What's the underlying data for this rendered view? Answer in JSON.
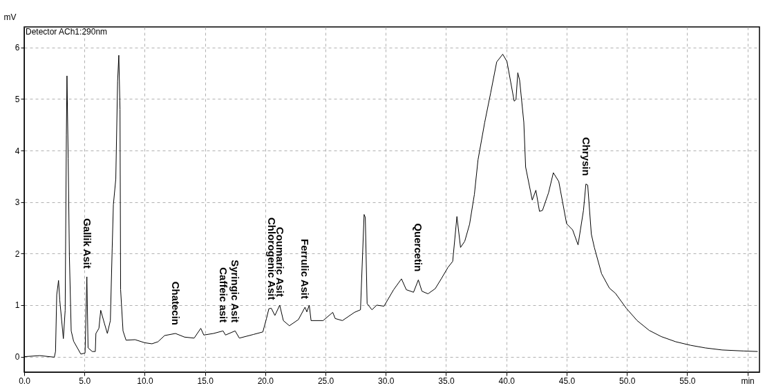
{
  "chart_data": {
    "type": "line",
    "ylabel": "mV",
    "annotations": [
      "Detector ACh1:290nm",
      {
        "text": "Gallik Asit",
        "x": 5.2,
        "y": 1.55
      },
      {
        "text": "Chatecin",
        "x": 12.55,
        "y": 0.45
      },
      {
        "text": "Caffeic asit",
        "x": 16.5,
        "y": 0.5
      },
      {
        "text": "Syringic Asit",
        "x": 17.5,
        "y": 0.5
      },
      {
        "text": "Chlorogenic Asit",
        "x": 20.5,
        "y": 0.94
      },
      {
        "text": "Coumaric Asit",
        "x": 21.2,
        "y": 1.0
      },
      {
        "text": "Ferrulic Asit",
        "x": 23.3,
        "y": 0.96
      },
      {
        "text": "Quercetin",
        "x": 32.7,
        "y": 1.49
      },
      {
        "text": "Chrysin",
        "x": 46.6,
        "y": 3.35
      }
    ],
    "x": [
      0,
      1.3,
      2.5,
      2.6,
      2.7,
      2.85,
      2.95,
      3.25,
      3.4,
      3.5,
      3.55,
      3.65,
      3.75,
      3.9,
      4.1,
      4.7,
      5.05,
      5.2,
      5.3,
      5.65,
      5.9,
      5.95,
      6.2,
      6.35,
      6.65,
      6.9,
      7.15,
      7.3,
      7.4,
      7.6,
      7.75,
      7.85,
      7.95,
      8.0,
      8.2,
      8.45,
      9.2,
      10.0,
      10.6,
      11.1,
      11.65,
      12.55,
      13.3,
      14.1,
      14.65,
      14.9,
      15.7,
      16.5,
      16.7,
      17.5,
      17.85,
      19.0,
      19.8,
      20.1,
      20.3,
      20.5,
      20.8,
      21.2,
      21.5,
      22.0,
      22.75,
      23.3,
      23.45,
      23.65,
      23.8,
      24.8,
      25.6,
      25.8,
      26.4,
      27.4,
      27.9,
      28.2,
      28.3,
      28.45,
      28.85,
      29.25,
      29.85,
      30.65,
      31.3,
      31.7,
      32.3,
      32.7,
      33.0,
      33.5,
      34.1,
      34.6,
      35.15,
      35.55,
      35.9,
      36.2,
      36.55,
      36.95,
      37.35,
      37.65,
      38.2,
      38.7,
      39.2,
      39.7,
      40.05,
      40.65,
      40.8,
      40.95,
      41.1,
      41.45,
      41.6,
      42.15,
      42.45,
      42.75,
      43.0,
      43.5,
      43.9,
      44.35,
      45.0,
      45.5,
      45.95,
      46.4,
      46.6,
      46.75,
      47.05,
      47.3,
      47.9,
      48.55,
      49.05,
      49.95,
      50.85,
      51.85,
      52.85,
      54.05,
      55.3,
      56.5,
      57.9,
      59.7,
      60.85
    ],
    "series": [
      {
        "color": "#000000",
        "values": [
          0,
          0.02,
          -0.01,
          0.1,
          1.2,
          1.48,
          1.1,
          0.35,
          0.9,
          4.3,
          5.45,
          3.85,
          1.95,
          0.5,
          0.3,
          0.05,
          0.07,
          1.55,
          0.17,
          0.1,
          0.1,
          0.45,
          0.55,
          0.9,
          0.65,
          0.45,
          0.7,
          2.1,
          2.95,
          3.45,
          5.35,
          5.85,
          4.8,
          1.3,
          0.5,
          0.32,
          0.33,
          0.27,
          0.25,
          0.29,
          0.41,
          0.45,
          0.38,
          0.36,
          0.55,
          0.42,
          0.45,
          0.5,
          0.42,
          0.5,
          0.36,
          0.43,
          0.48,
          0.74,
          0.93,
          0.94,
          0.8,
          1.0,
          0.7,
          0.6,
          0.72,
          0.96,
          0.87,
          1.0,
          0.7,
          0.7,
          0.86,
          0.74,
          0.7,
          0.86,
          0.91,
          2.76,
          2.7,
          1.03,
          0.91,
          1.0,
          0.98,
          1.3,
          1.51,
          1.3,
          1.25,
          1.49,
          1.27,
          1.22,
          1.32,
          1.51,
          1.73,
          1.85,
          2.72,
          2.12,
          2.24,
          2.57,
          3.15,
          3.82,
          4.54,
          5.12,
          5.72,
          5.87,
          5.73,
          4.96,
          4.99,
          5.51,
          5.37,
          4.55,
          3.68,
          3.04,
          3.23,
          2.82,
          2.84,
          3.18,
          3.57,
          3.4,
          2.58,
          2.46,
          2.17,
          2.84,
          3.35,
          3.33,
          2.38,
          2.12,
          1.61,
          1.33,
          1.23,
          0.94,
          0.7,
          0.51,
          0.39,
          0.29,
          0.22,
          0.17,
          0.13,
          0.11,
          0.1
        ]
      }
    ],
    "xlim": [
      0,
      61
    ],
    "ylim": [
      -0.3,
      6.4
    ],
    "xticks": [
      {
        "value": 0,
        "label": "0.0"
      },
      {
        "value": 5,
        "label": "5.0"
      },
      {
        "value": 10,
        "label": "10.0"
      },
      {
        "value": 15,
        "label": "15.0"
      },
      {
        "value": 20,
        "label": "20.0"
      },
      {
        "value": 25,
        "label": "25.0"
      },
      {
        "value": 30,
        "label": "30.0"
      },
      {
        "value": 35,
        "label": "35.0"
      },
      {
        "value": 40,
        "label": "40.0"
      },
      {
        "value": 45,
        "label": "45.0"
      },
      {
        "value": 50,
        "label": "50.0"
      },
      {
        "value": 55,
        "label": "55.0"
      },
      {
        "value": 60,
        "label": "min"
      }
    ],
    "yticks": [
      0,
      1,
      2,
      3,
      4,
      5,
      6
    ],
    "grid": true,
    "legend": false,
    "line_style": "solid",
    "marker": "none"
  }
}
